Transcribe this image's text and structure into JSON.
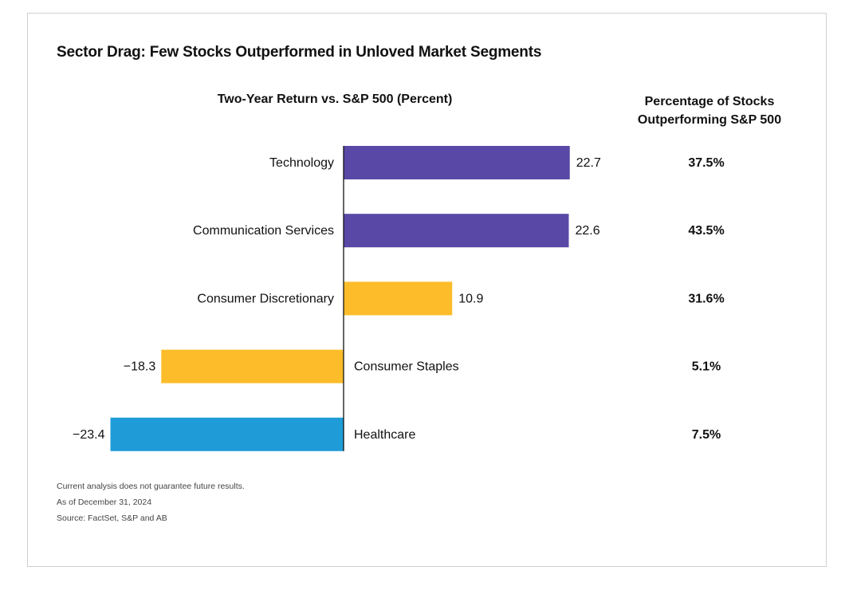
{
  "title": "Sector Drag: Few Stocks Outperformed in Unloved Market Segments",
  "left_heading": "Two-Year Return vs. S&P 500 (Percent)",
  "right_heading": [
    "Percentage of Stocks",
    "Outperforming S&P 500"
  ],
  "footnotes": [
    "Current analysis does not guarantee future results.",
    "As of December 31, 2024",
    "Source: FactSet, S&P and AB"
  ],
  "colors": {
    "purple": "#5a48a6",
    "yellow": "#fdbd2b",
    "blue": "#1f9cd8",
    "axis": "#111111"
  },
  "chart_data": {
    "type": "bar",
    "orientation": "horizontal",
    "categories": [
      "Technology",
      "Communication Services",
      "Consumer Discretionary",
      "Consumer Staples",
      "Healthcare"
    ],
    "values": [
      22.7,
      22.6,
      10.9,
      -18.3,
      -23.4
    ],
    "value_labels": [
      "22.7",
      "22.6",
      "10.9",
      "−18.3",
      "−23.4"
    ],
    "bar_colors": [
      "purple",
      "purple",
      "yellow",
      "yellow",
      "blue"
    ],
    "pct_outperforming": [
      "37.5%",
      "43.5%",
      "31.6%",
      "5.1%",
      "7.5%"
    ],
    "title": "Two-Year Return vs. S&P 500 (Percent)",
    "xlim": [
      -25,
      25
    ],
    "grid": false
  }
}
